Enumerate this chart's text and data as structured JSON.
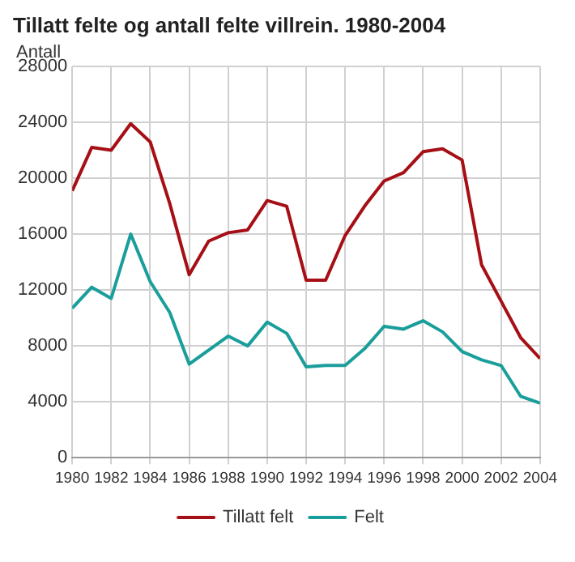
{
  "chart_data": {
    "type": "line",
    "title": "Tillatt felte og antall felte villrein. 1980-2004",
    "ylabel": "Antall",
    "x": [
      1980,
      1981,
      1982,
      1983,
      1984,
      1985,
      1986,
      1987,
      1988,
      1989,
      1990,
      1991,
      1992,
      1993,
      1994,
      1995,
      1996,
      1997,
      1998,
      1999,
      2000,
      2001,
      2002,
      2003,
      2004
    ],
    "series": [
      {
        "name": "Tillatt felt",
        "color": "#a50f15",
        "values": [
          19100,
          22200,
          22000,
          23900,
          22600,
          18200,
          13100,
          15500,
          16100,
          16300,
          18400,
          18000,
          12700,
          12700,
          15900,
          18000,
          19800,
          20400,
          21900,
          22100,
          21300,
          13800,
          11200,
          8600,
          7100
        ]
      },
      {
        "name": "Felt",
        "color": "#1a9e9b",
        "values": [
          10700,
          12200,
          11400,
          16000,
          12600,
          10400,
          6700,
          7700,
          8700,
          8000,
          9700,
          8900,
          6500,
          6600,
          6600,
          7800,
          9400,
          9200,
          9800,
          9000,
          7600,
          7000,
          6600,
          4400,
          3900
        ]
      }
    ],
    "xlim": [
      1980,
      2004
    ],
    "xticks": [
      1980,
      1982,
      1984,
      1986,
      1988,
      1990,
      1992,
      1994,
      1996,
      1998,
      2000,
      2002,
      2004
    ],
    "ylim": [
      0,
      28000
    ],
    "yticks": [
      0,
      4000,
      8000,
      12000,
      16000,
      20000,
      24000,
      28000
    ],
    "grid": true,
    "legend": "bottom",
    "marker": "none",
    "line_style": "solid"
  }
}
